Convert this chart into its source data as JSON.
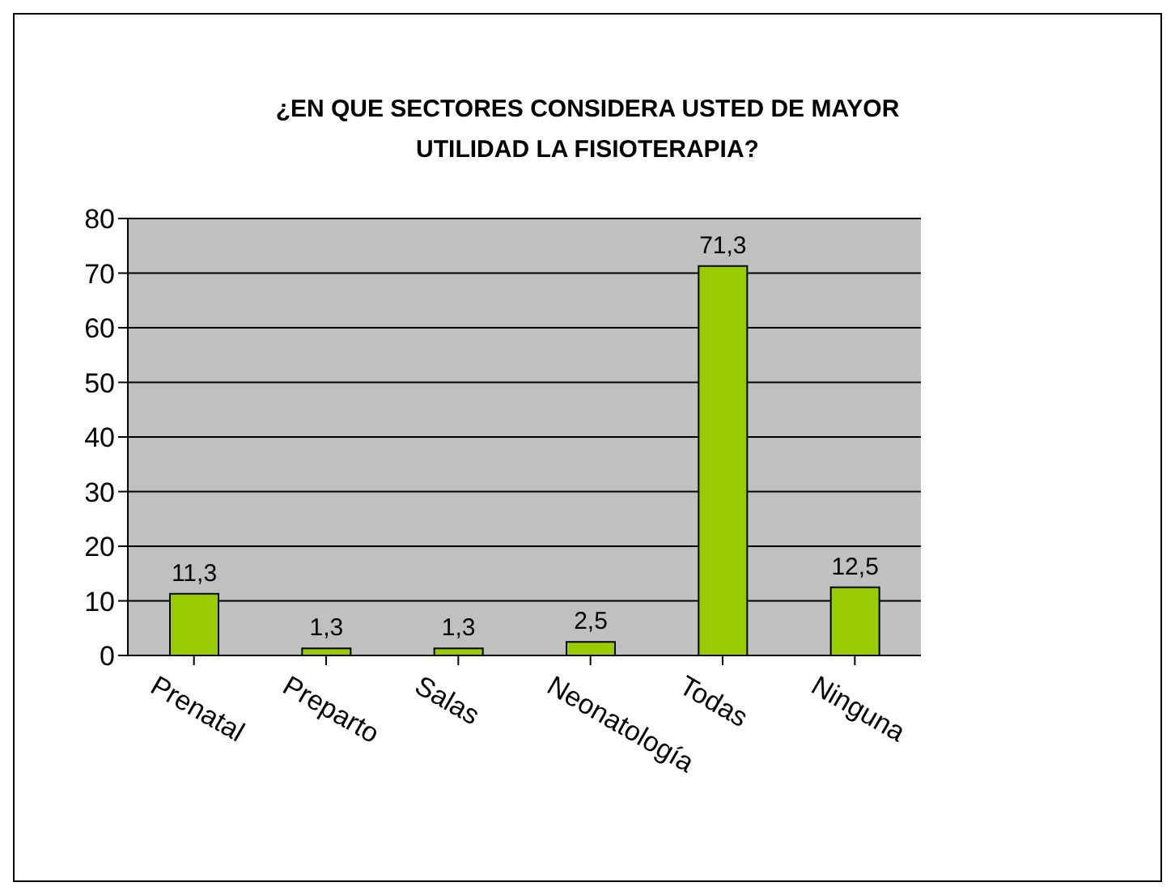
{
  "chart_data": {
    "type": "bar",
    "title": "¿EN QUE SECTORES CONSIDERA USTED DE MAYOR UTILIDAD LA FISIOTERAPIA?",
    "categories": [
      "Prenatal",
      "Preparto",
      "Salas",
      "Neonatología",
      "Todas",
      "Ninguna"
    ],
    "values": [
      11.3,
      1.3,
      1.3,
      2.5,
      71.3,
      12.5
    ],
    "value_labels": [
      "11,3",
      "1,3",
      "1,3",
      "2,5",
      "71,3",
      "12,5"
    ],
    "color": "#99cc00",
    "ylim": [
      0,
      80
    ],
    "yticks": [
      0,
      10,
      20,
      30,
      40,
      50,
      60,
      70,
      80
    ],
    "grid": "y"
  }
}
